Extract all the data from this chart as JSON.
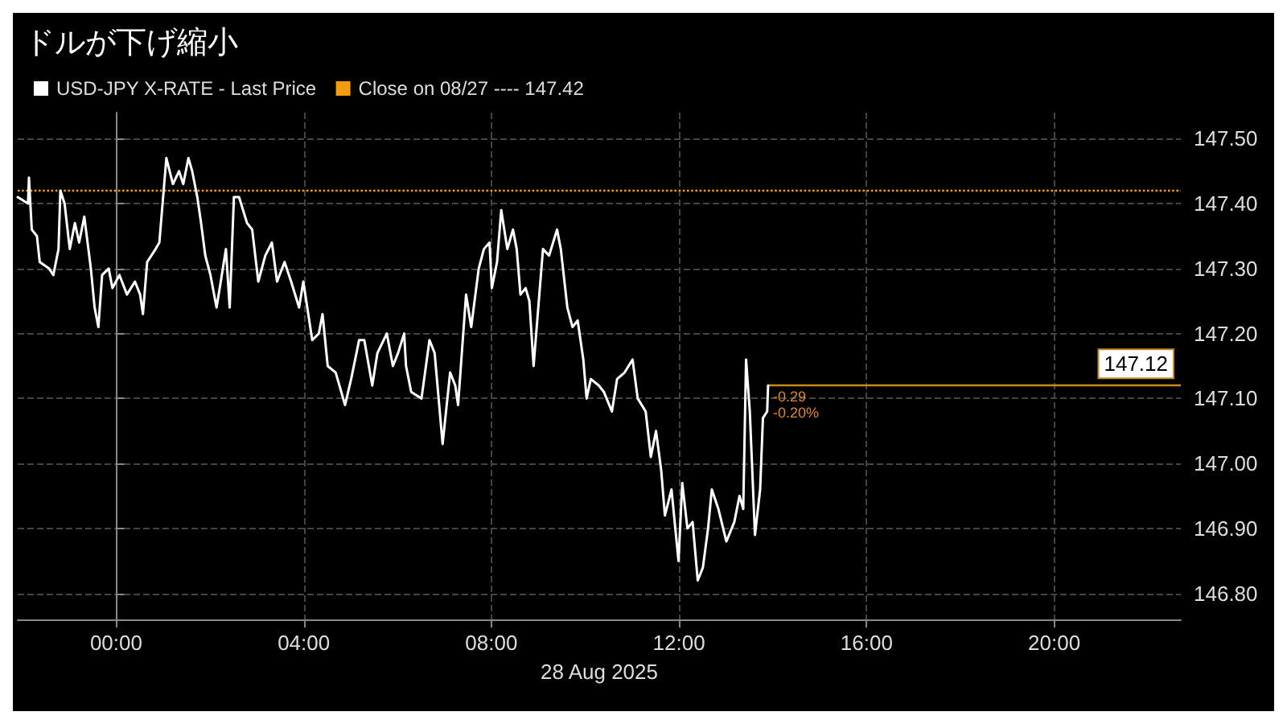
{
  "chart_data": {
    "type": "line",
    "title": "ドルが下げ縮小",
    "xlabel": "28 Aug 2025",
    "x": [
      -2.1,
      -1.88,
      -1.86,
      -1.8,
      -1.69,
      -1.63,
      -1.43,
      -1.34,
      -1.23,
      -1.19,
      -1.1,
      -0.99,
      -0.88,
      -0.79,
      -0.68,
      -0.54,
      -0.46,
      -0.38,
      -0.3,
      -0.16,
      -0.08,
      0.07,
      0.23,
      0.4,
      0.51,
      0.57,
      0.66,
      0.84,
      0.92,
      1.07,
      1.21,
      1.34,
      1.43,
      1.54,
      1.62,
      1.73,
      1.81,
      1.9,
      2.01,
      2.14,
      2.23,
      2.34,
      2.42,
      2.51,
      2.62,
      2.79,
      2.9,
      3.03,
      3.18,
      3.32,
      3.43,
      3.59,
      3.73,
      3.9,
      3.99,
      4.18,
      4.32,
      4.4,
      4.51,
      4.68,
      4.88,
      5.01,
      5.18,
      5.29,
      5.46,
      5.57,
      5.77,
      5.9,
      6.01,
      6.14,
      6.18,
      6.29,
      6.51,
      6.68,
      6.79,
      6.96,
      7.12,
      7.23,
      7.29,
      7.46,
      7.57,
      7.73,
      7.84,
      7.96,
      8.01,
      8.12,
      8.21,
      8.34,
      8.46,
      8.54,
      8.62,
      8.73,
      8.81,
      8.9,
      9.1,
      9.23,
      9.4,
      9.48,
      9.62,
      9.73,
      9.84,
      9.96,
      10.03,
      10.12,
      10.29,
      10.4,
      10.57,
      10.68,
      10.84,
      11.01,
      11.12,
      11.29,
      11.4,
      11.51,
      11.62,
      11.7,
      11.84,
      11.99,
      12.07,
      12.18,
      12.29,
      12.4,
      12.51,
      12.62,
      12.7,
      12.84,
      13.01,
      13.18,
      13.29,
      13.37,
      13.43,
      13.51,
      13.62,
      13.73,
      13.79,
      13.88,
      13.9
    ],
    "series": [
      {
        "name": "USD-JPY X-RATE - Last Price",
        "color": "#ffffff",
        "values": [
          147.41,
          147.4,
          147.44,
          147.36,
          147.35,
          147.31,
          147.3,
          147.29,
          147.33,
          147.42,
          147.4,
          147.33,
          147.37,
          147.34,
          147.38,
          147.3,
          147.24,
          147.21,
          147.29,
          147.3,
          147.27,
          147.29,
          147.26,
          147.28,
          147.26,
          147.23,
          147.31,
          147.33,
          147.34,
          147.47,
          147.43,
          147.45,
          147.43,
          147.47,
          147.45,
          147.41,
          147.37,
          147.32,
          147.29,
          147.24,
          147.28,
          147.33,
          147.24,
          147.41,
          147.41,
          147.37,
          147.36,
          147.28,
          147.32,
          147.34,
          147.28,
          147.31,
          147.28,
          147.24,
          147.28,
          147.19,
          147.2,
          147.23,
          147.15,
          147.14,
          147.09,
          147.13,
          147.19,
          147.19,
          147.12,
          147.17,
          147.2,
          147.15,
          147.17,
          147.2,
          147.15,
          147.11,
          147.1,
          147.19,
          147.17,
          147.03,
          147.14,
          147.12,
          147.09,
          147.26,
          147.21,
          147.3,
          147.33,
          147.34,
          147.27,
          147.31,
          147.39,
          147.33,
          147.36,
          147.33,
          147.26,
          147.27,
          147.25,
          147.15,
          147.33,
          147.32,
          147.36,
          147.33,
          147.24,
          147.21,
          147.22,
          147.16,
          147.1,
          147.13,
          147.12,
          147.11,
          147.08,
          147.13,
          147.14,
          147.16,
          147.1,
          147.08,
          147.01,
          147.05,
          146.99,
          146.92,
          146.96,
          146.85,
          146.97,
          146.9,
          146.91,
          146.82,
          146.84,
          146.9,
          146.96,
          146.93,
          146.88,
          146.91,
          146.95,
          146.93,
          147.16,
          147.08,
          146.89,
          146.96,
          147.07,
          147.08,
          147.12
        ]
      }
    ],
    "xlim": [
      -2.1,
      22.7
    ],
    "xticks": [
      {
        "value": 0,
        "label": "00:00"
      },
      {
        "value": 4,
        "label": "04:00"
      },
      {
        "value": 8,
        "label": "08:00"
      },
      {
        "value": 12,
        "label": "12:00"
      },
      {
        "value": 16,
        "label": "16:00"
      },
      {
        "value": 20,
        "label": "20:00"
      }
    ],
    "ylim": [
      146.76,
      147.54
    ],
    "yticks": [
      {
        "value": 146.8,
        "label": "146.80"
      },
      {
        "value": 146.9,
        "label": "146.90"
      },
      {
        "value": 147,
        "label": "147.00"
      },
      {
        "value": 147.1,
        "label": "147.10"
      },
      {
        "value": 147.2,
        "label": "147.20"
      },
      {
        "value": 147.3,
        "label": "147.30"
      },
      {
        "value": 147.4,
        "label": "147.40"
      },
      {
        "value": 147.5,
        "label": "147.50"
      }
    ],
    "ref_lines": [
      {
        "axis": "y",
        "value": 147.42,
        "label": "Close on 08/27 ---- 147.42",
        "color": "#f39c12",
        "line_style": "dotted"
      },
      {
        "axis": "y",
        "value": 147.12,
        "label": "147.12",
        "color": "#c98a1c",
        "line_style": "solid"
      }
    ],
    "annotations": [
      {
        "text": "-0.29",
        "x": 13.9,
        "y": 147.103
      },
      {
        "text": "-0.20%",
        "x": 13.9,
        "y": 147.078
      }
    ],
    "grid": true,
    "legend": "top left",
    "marker": "none",
    "line_style": "solid"
  }
}
